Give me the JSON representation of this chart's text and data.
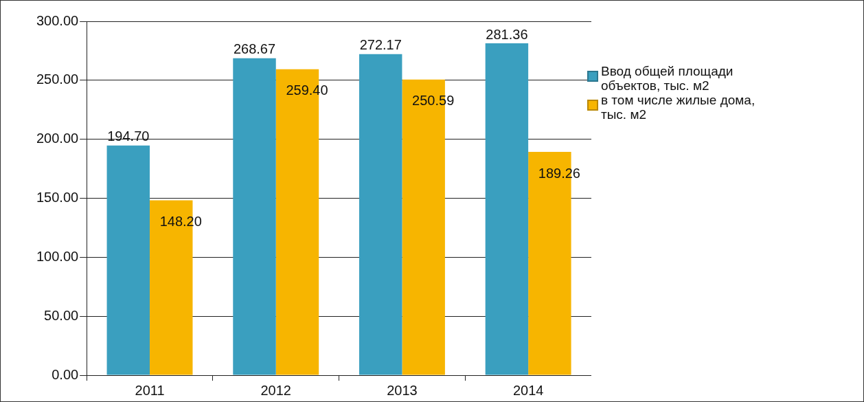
{
  "chart_data": {
    "type": "bar",
    "categories": [
      "2011",
      "2012",
      "2013",
      "2014"
    ],
    "series": [
      {
        "name": "Ввод общей площади объектов, тыс. м2",
        "color": "#3a9fbf",
        "values": [
          194.7,
          268.67,
          272.17,
          281.36
        ],
        "value_labels": [
          "194.70",
          "268.67",
          "272.17",
          "281.36"
        ]
      },
      {
        "name": "в том числе жилые дома, тыс. м2",
        "color": "#f7b500",
        "values": [
          148.2,
          259.4,
          250.59,
          189.26
        ],
        "value_labels": [
          "148.20",
          "259.40",
          "250.59",
          "189.26"
        ]
      }
    ],
    "ylim": [
      0,
      300
    ],
    "yticks": [
      {
        "value": 0,
        "label": "0.00"
      },
      {
        "value": 50,
        "label": "50.00"
      },
      {
        "value": 100,
        "label": "100.00"
      },
      {
        "value": 150,
        "label": "150.00"
      },
      {
        "value": 200,
        "label": "200.00"
      },
      {
        "value": 250,
        "label": "250.00"
      },
      {
        "value": 300,
        "label": "300.00"
      }
    ],
    "grid": "y",
    "legend": "right"
  }
}
